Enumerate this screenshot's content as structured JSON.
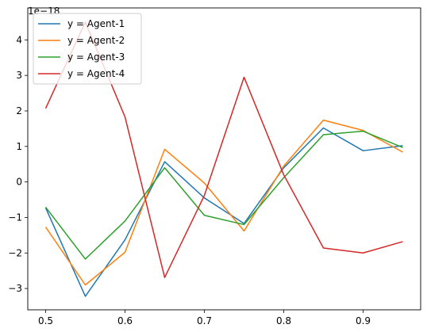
{
  "chart_data": {
    "type": "line",
    "title": "",
    "xlabel": "",
    "ylabel": "",
    "offset_label": "1e−18",
    "x": [
      0.5,
      0.55,
      0.6,
      0.65,
      0.7,
      0.75,
      0.8,
      0.85,
      0.9,
      0.95
    ],
    "xlim": [
      0.4775,
      0.9725
    ],
    "ylim": [
      -3.6,
      4.9
    ],
    "x_ticks": [
      0.5,
      0.6,
      0.7,
      0.8,
      0.9
    ],
    "x_tick_labels": [
      "0.5",
      "0.6",
      "0.7",
      "0.8",
      "0.9"
    ],
    "y_ticks": [
      -3,
      -2,
      -1,
      0,
      1,
      2,
      3,
      4
    ],
    "y_tick_labels": [
      "−3",
      "−2",
      "−1",
      "0",
      "1",
      "2",
      "3",
      "4"
    ],
    "grid": false,
    "legend_position": "top-left",
    "series": [
      {
        "name": "y = Agent-1",
        "color": "#1f77b4",
        "values": [
          -0.73,
          -3.22,
          -1.63,
          0.57,
          -0.45,
          -1.17,
          0.4,
          1.52,
          0.88,
          1.02
        ]
      },
      {
        "name": "y = Agent-2",
        "color": "#ff7f0e",
        "values": [
          -1.27,
          -2.9,
          -1.98,
          0.92,
          -0.03,
          -1.38,
          0.45,
          1.74,
          1.45,
          0.84
        ]
      },
      {
        "name": "y = Agent-3",
        "color": "#2ca02c",
        "values": [
          -0.71,
          -2.17,
          -1.1,
          0.4,
          -0.94,
          -1.2,
          0.12,
          1.33,
          1.43,
          0.97
        ]
      },
      {
        "name": "y = Agent-4",
        "color": "#d62728",
        "values": [
          2.07,
          4.5,
          1.83,
          -2.69,
          -0.38,
          2.95,
          0.2,
          -1.86,
          -2.0,
          -1.68
        ]
      }
    ]
  }
}
